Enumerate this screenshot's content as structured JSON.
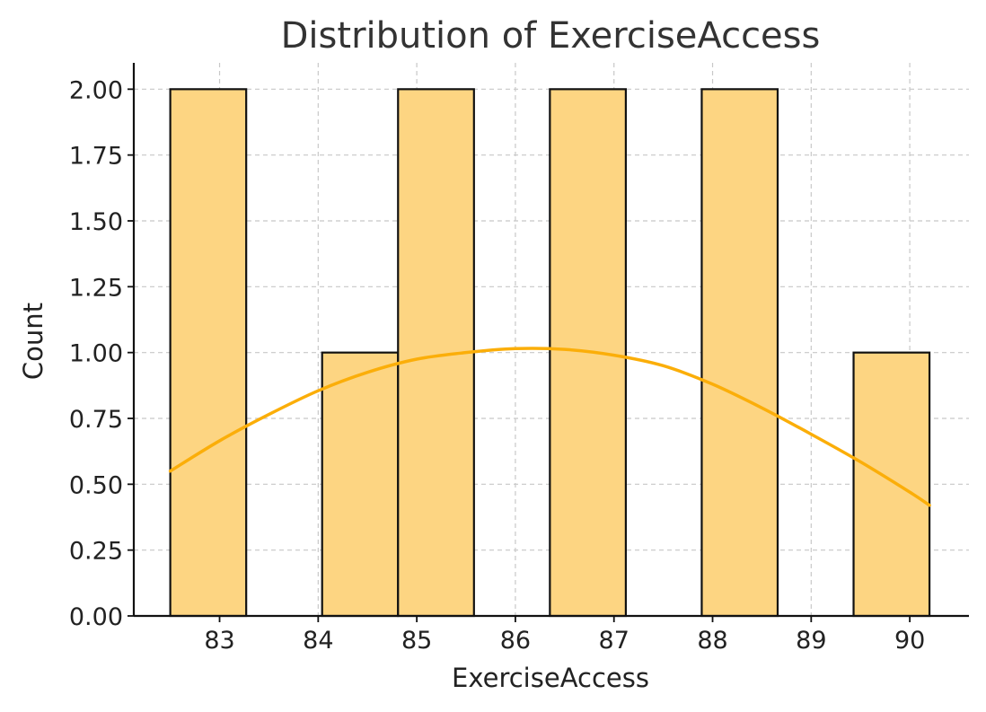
{
  "chart_data": {
    "type": "bar",
    "title": "Distribution of ExerciseAccess",
    "xlabel": "ExerciseAccess",
    "ylabel": "Count",
    "xlim": [
      82.13,
      90.6
    ],
    "ylim": [
      0,
      2.1
    ],
    "x_ticks": [
      83,
      84,
      85,
      86,
      87,
      88,
      89,
      90
    ],
    "x_tick_labels": [
      "83",
      "84",
      "85",
      "86",
      "87",
      "88",
      "89",
      "90"
    ],
    "y_ticks": [
      0,
      0.25,
      0.5,
      0.75,
      1.0,
      1.25,
      1.5,
      1.75,
      2.0
    ],
    "y_tick_labels": [
      "0.00",
      "0.25",
      "0.50",
      "0.75",
      "1.00",
      "1.25",
      "1.50",
      "1.75",
      "2.00"
    ],
    "grid": true,
    "bins": [
      {
        "x0": 82.5,
        "x1": 83.27,
        "count": 2
      },
      {
        "x0": 83.27,
        "x1": 84.04,
        "count": 0
      },
      {
        "x0": 84.04,
        "x1": 84.81,
        "count": 1
      },
      {
        "x0": 84.81,
        "x1": 85.58,
        "count": 2
      },
      {
        "x0": 85.58,
        "x1": 86.35,
        "count": 0
      },
      {
        "x0": 86.35,
        "x1": 87.12,
        "count": 2
      },
      {
        "x0": 87.12,
        "x1": 87.89,
        "count": 0
      },
      {
        "x0": 87.89,
        "x1": 88.66,
        "count": 2
      },
      {
        "x0": 88.66,
        "x1": 89.43,
        "count": 0
      },
      {
        "x0": 89.43,
        "x1": 90.2,
        "count": 1
      }
    ],
    "kde": {
      "x": [
        82.5,
        83.0,
        83.5,
        84.0,
        84.5,
        85.0,
        85.5,
        86.0,
        86.5,
        87.0,
        87.5,
        88.0,
        88.5,
        89.0,
        89.5,
        90.0,
        90.2
      ],
      "y": [
        0.55,
        0.665,
        0.765,
        0.855,
        0.925,
        0.975,
        1.0,
        1.015,
        1.012,
        0.99,
        0.95,
        0.88,
        0.79,
        0.69,
        0.585,
        0.47,
        0.42
      ]
    },
    "colors": {
      "bar_fill": "#FDD582",
      "bar_edge": "#111111",
      "kde_line": "#FBAE09"
    }
  }
}
